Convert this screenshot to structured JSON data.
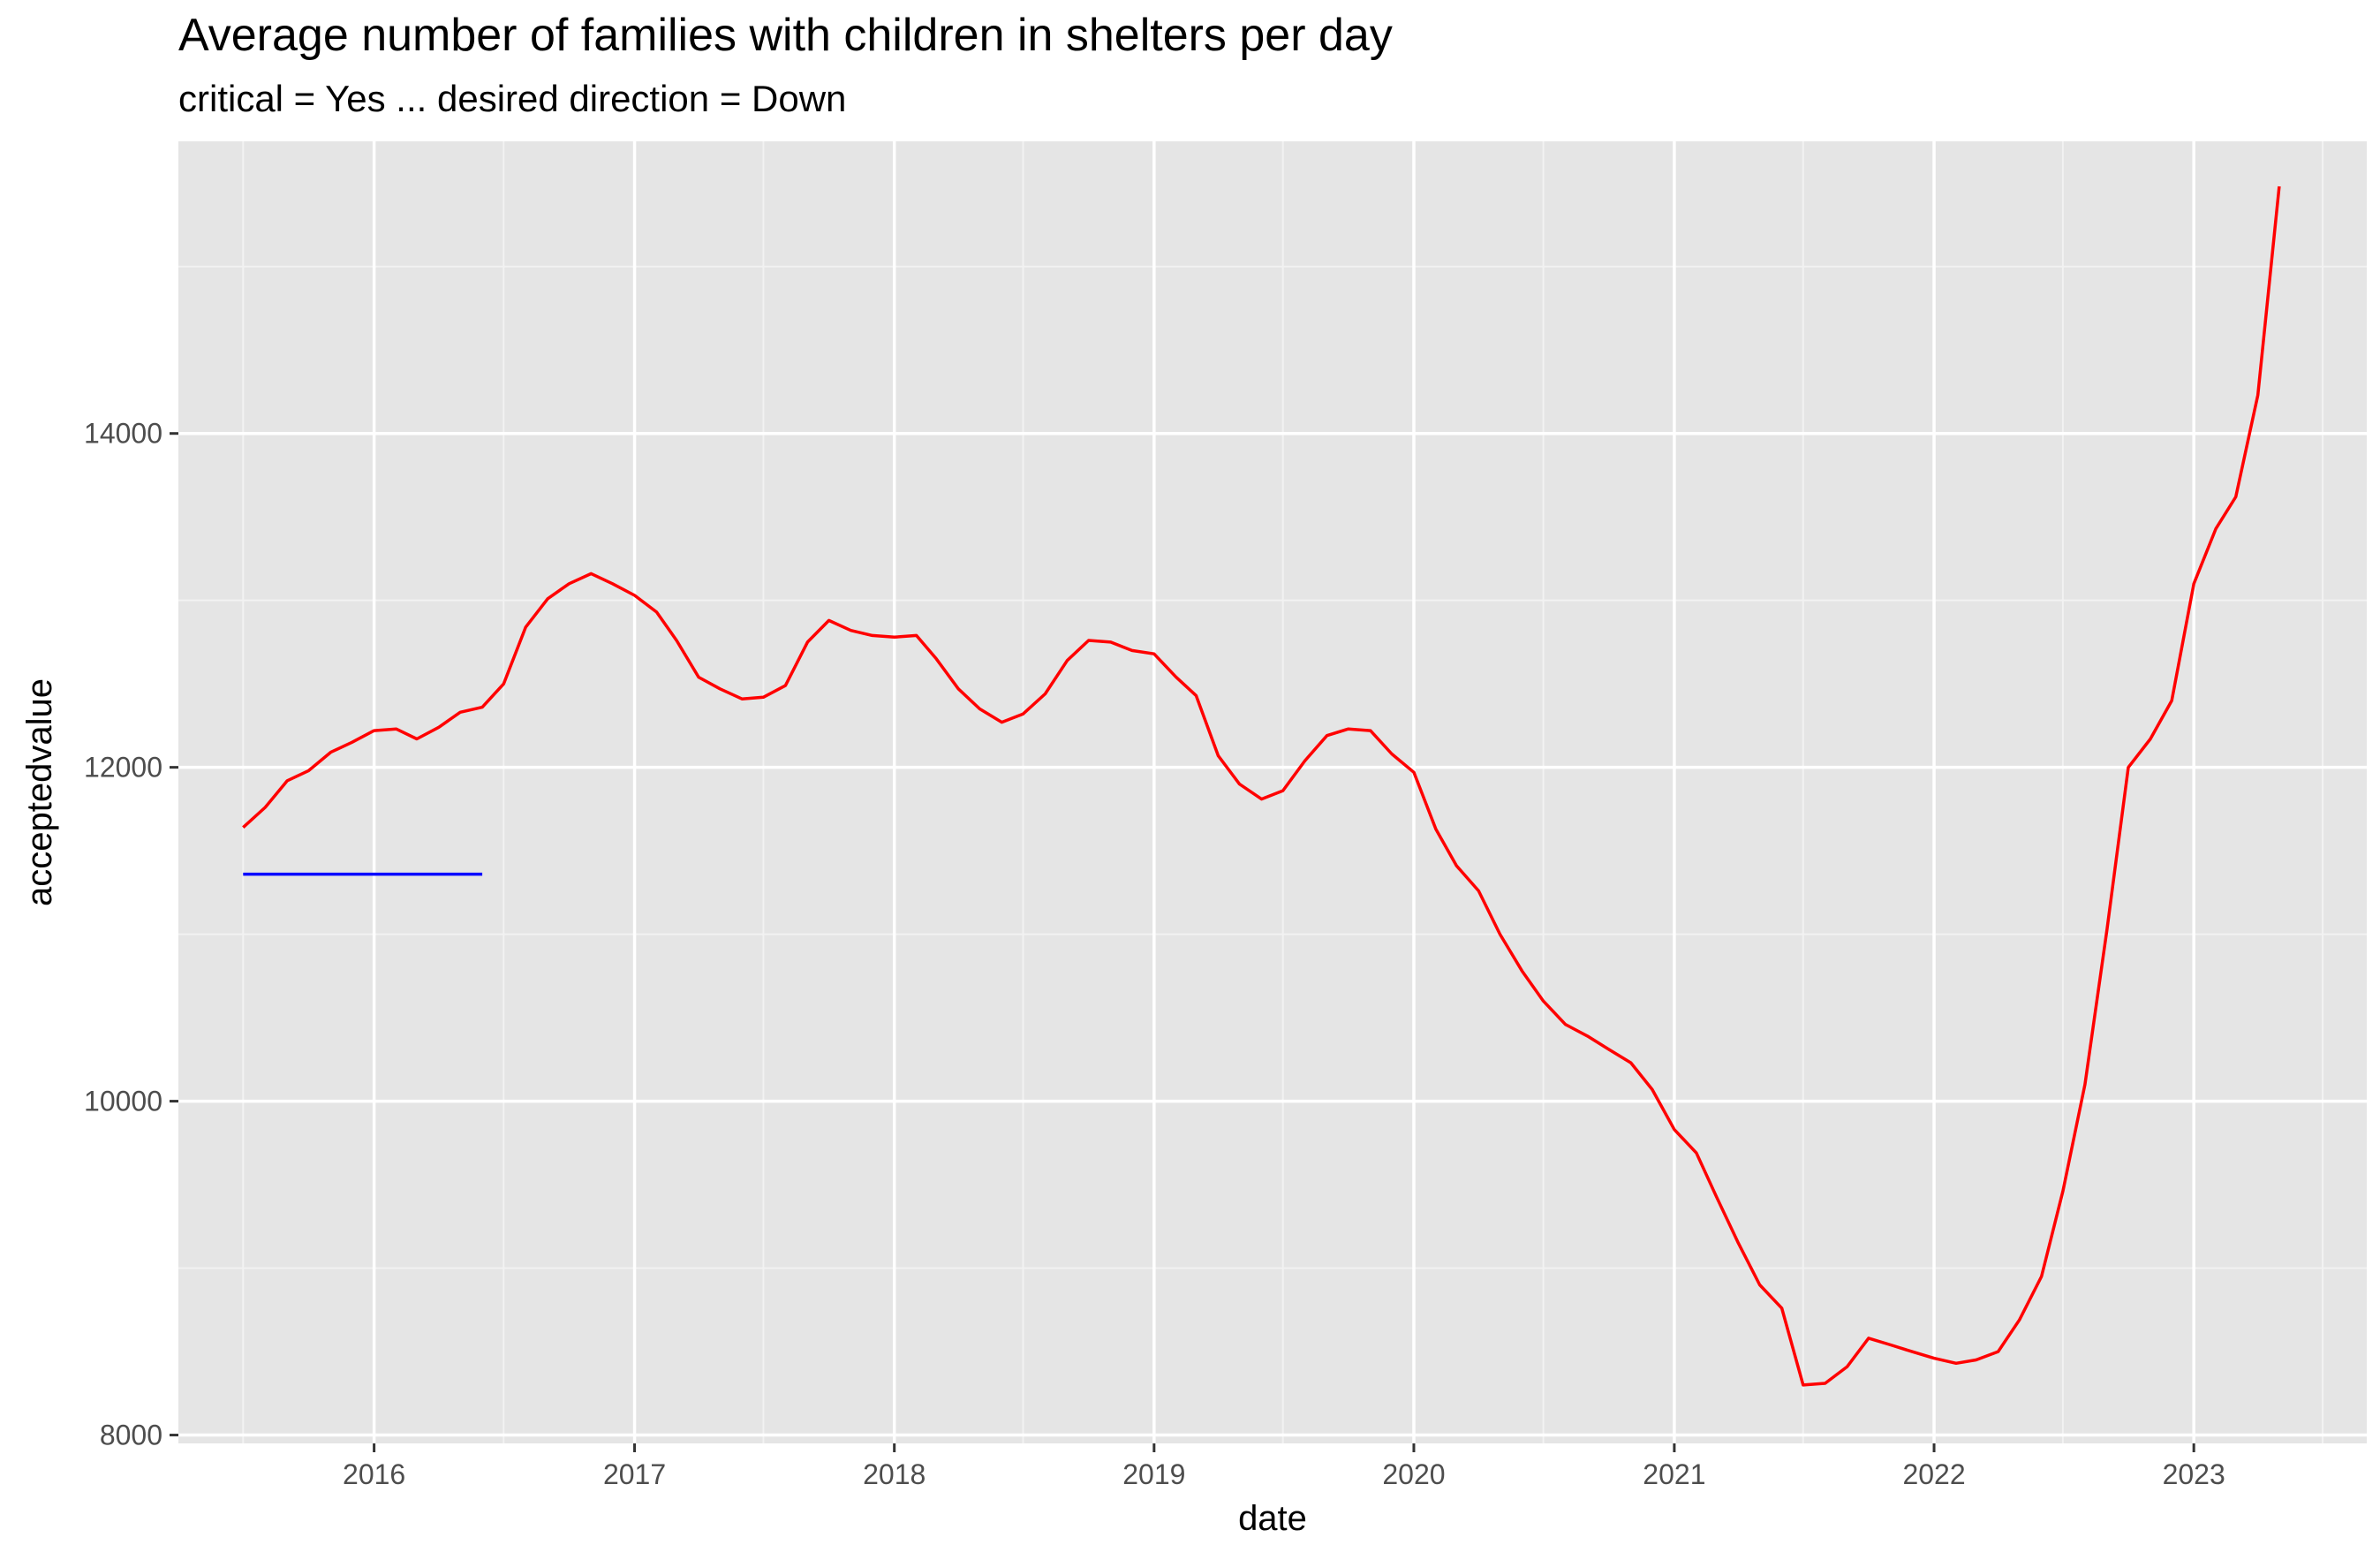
{
  "chart_data": {
    "type": "line",
    "title": "Average number of families with children in shelters per day",
    "subtitle": "critical = Yes ... desired direction = Down",
    "xlabel": "date",
    "ylabel": "acceptedvalue",
    "x_ticks": [
      "2016",
      "2017",
      "2018",
      "2019",
      "2020",
      "2021",
      "2022",
      "2023"
    ],
    "y_ticks": [
      8000,
      10000,
      12000,
      14000
    ],
    "xlim": [
      "2015-04-01",
      "2023-09-01"
    ],
    "ylim": [
      7950,
      15750
    ],
    "grid": true,
    "background": "#e5e5e5",
    "series": [
      {
        "color": "#ff0000",
        "x": [
          "2015-07-01",
          "2015-08-01",
          "2015-09-01",
          "2015-10-01",
          "2015-11-01",
          "2015-12-01",
          "2016-01-01",
          "2016-02-01",
          "2016-03-01",
          "2016-04-01",
          "2016-05-01",
          "2016-06-01",
          "2016-07-01",
          "2016-08-01",
          "2016-09-01",
          "2016-10-01",
          "2016-11-01",
          "2016-12-01",
          "2017-01-01",
          "2017-02-01",
          "2017-03-01",
          "2017-04-01",
          "2017-05-01",
          "2017-06-01",
          "2017-07-01",
          "2017-08-01",
          "2017-09-01",
          "2017-10-01",
          "2017-11-01",
          "2017-12-01",
          "2018-01-01",
          "2018-02-01",
          "2018-03-01",
          "2018-04-01",
          "2018-05-01",
          "2018-06-01",
          "2018-07-01",
          "2018-08-01",
          "2018-09-01",
          "2018-10-01",
          "2018-11-01",
          "2018-12-01",
          "2019-01-01",
          "2019-02-01",
          "2019-03-01",
          "2019-04-01",
          "2019-05-01",
          "2019-06-01",
          "2019-07-01",
          "2019-08-01",
          "2019-09-01",
          "2019-10-01",
          "2019-11-01",
          "2019-12-01",
          "2020-01-01",
          "2020-02-01",
          "2020-03-01",
          "2020-04-01",
          "2020-05-01",
          "2020-06-01",
          "2020-07-01",
          "2020-08-01",
          "2020-09-01",
          "2020-10-01",
          "2020-11-01",
          "2020-12-01",
          "2021-01-01",
          "2021-02-01",
          "2021-03-01",
          "2021-04-01",
          "2021-05-01",
          "2021-06-01",
          "2021-07-01",
          "2021-08-01",
          "2021-09-01",
          "2021-10-01",
          "2021-11-01",
          "2021-12-01",
          "2022-01-01",
          "2022-02-01",
          "2022-03-01",
          "2022-04-01",
          "2022-05-01",
          "2022-06-01",
          "2022-07-01",
          "2022-08-01",
          "2022-09-01",
          "2022-10-01",
          "2022-11-01",
          "2022-12-01",
          "2023-01-01",
          "2023-02-01",
          "2023-03-01",
          "2023-04-01",
          "2023-05-01"
        ],
        "y": [
          11640,
          11760,
          11920,
          11980,
          12090,
          12150,
          12220,
          12230,
          12170,
          12240,
          12330,
          12360,
          12500,
          12840,
          13010,
          13100,
          13160,
          13100,
          13030,
          12930,
          12760,
          12540,
          12470,
          12410,
          12420,
          12490,
          12750,
          12880,
          12820,
          12790,
          12780,
          12790,
          12650,
          12470,
          12350,
          12270,
          12320,
          12440,
          12640,
          12760,
          12750,
          12700,
          12680,
          12540,
          12430,
          12070,
          11900,
          11810,
          11860,
          12040,
          12190,
          12230,
          12220,
          12080,
          11970,
          11630,
          11410,
          11260,
          11000,
          10780,
          10600,
          10460,
          10390,
          10310,
          10230,
          10070,
          9830,
          9690,
          9430,
          9150,
          8900,
          8760,
          8300,
          8310,
          8410,
          8580,
          8540,
          8500,
          8460,
          8430,
          8450,
          8500,
          8690,
          8950,
          9460,
          10100,
          11030,
          12000,
          12170,
          12400,
          13100,
          13430,
          13620,
          14230,
          15480
        ]
      },
      {
        "color": "#0000ff",
        "x": [
          "2015-07-01",
          "2016-06-01"
        ],
        "y": [
          11360,
          11360
        ]
      }
    ]
  }
}
